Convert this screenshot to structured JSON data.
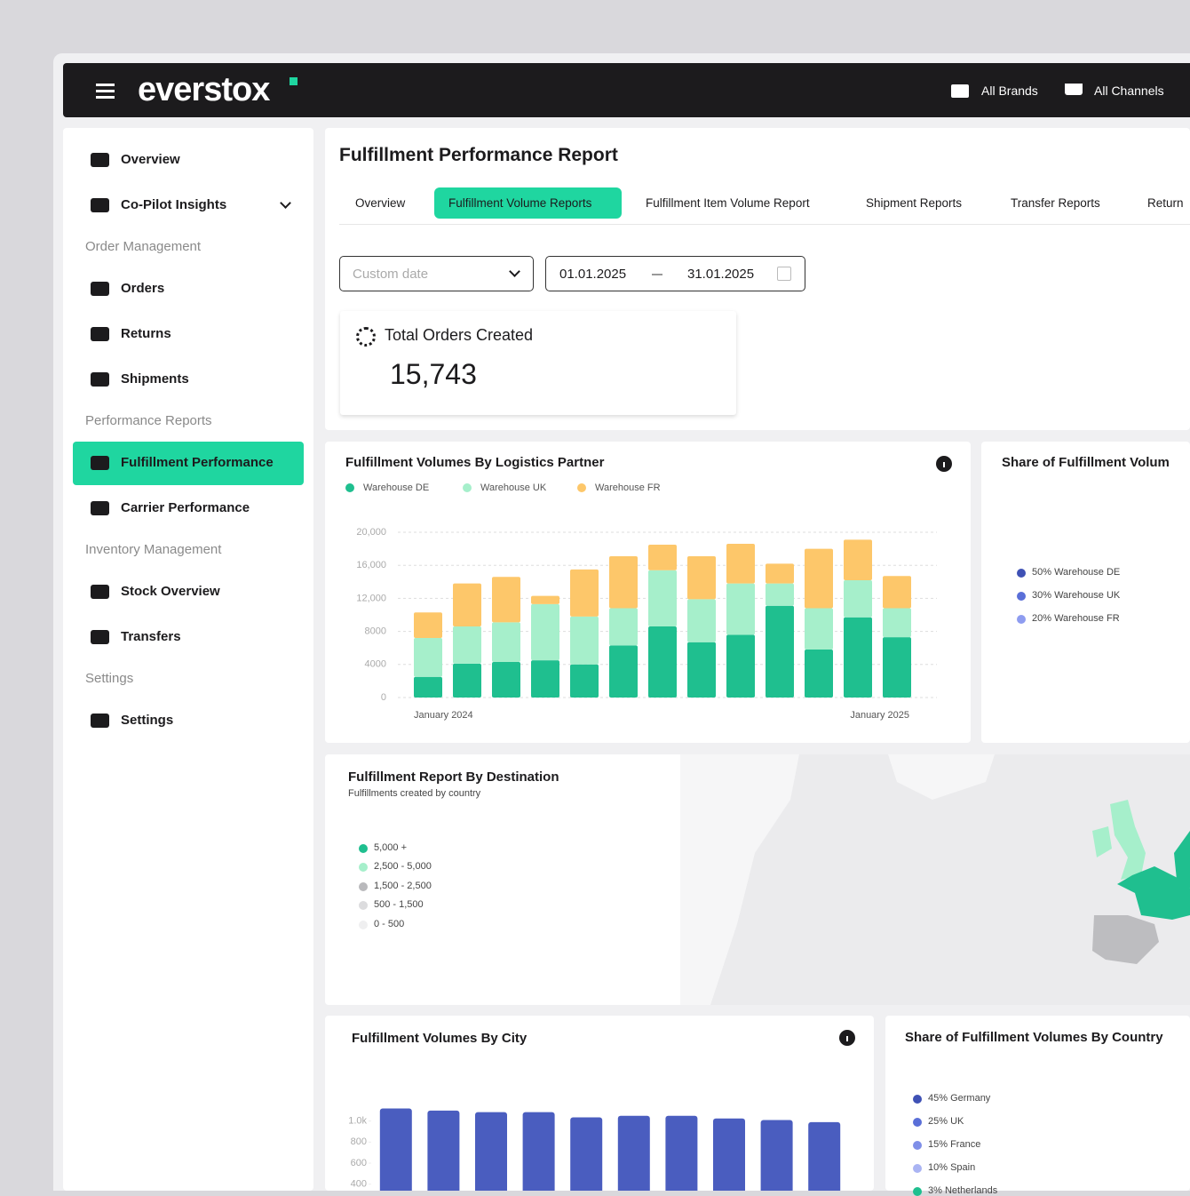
{
  "header": {
    "logo": "everstox",
    "brands": "All Brands",
    "channels": "All Channels"
  },
  "sidebar": [
    {
      "label": "Overview"
    },
    {
      "label": "Co-Pilot Insights",
      "expandable": true
    },
    {
      "section": "Order Management"
    },
    {
      "label": "Orders"
    },
    {
      "label": "Returns"
    },
    {
      "label": "Shipments"
    },
    {
      "section": "Performance Reports"
    },
    {
      "label": "Fulfillment Performance",
      "active": true
    },
    {
      "label": "Carrier Performance"
    },
    {
      "section": "Inventory Management"
    },
    {
      "label": "Stock Overview"
    },
    {
      "label": "Transfers"
    },
    {
      "section": "Settings"
    },
    {
      "label": "Settings"
    }
  ],
  "report": {
    "title": "Fulfillment Performance Report",
    "tabs": [
      "Overview",
      "Fulfillment Volume Reports",
      "Fulfillment Item Volume Report",
      "Shipment Reports",
      "Transfer Reports",
      "Return"
    ],
    "active_tab": 1,
    "date_range": {
      "placeholder": "Custom date",
      "from": "01.01.2025",
      "to": "31.01.2025"
    },
    "kpi": {
      "label": "Total Orders Created",
      "value": "15,743"
    }
  },
  "chart_data": [
    {
      "type": "bar",
      "stacked": true,
      "title": "Fulfillment Volumes By Logistics Partner",
      "legend": "top-left",
      "grid": true,
      "categories": [
        "January 2024",
        null,
        null,
        null,
        null,
        null,
        null,
        null,
        null,
        null,
        null,
        null,
        "January 2025"
      ],
      "series": [
        {
          "name": "Warehouse DE",
          "color": "#1fbf8f",
          "values": [
            2500,
            4100,
            4300,
            4500,
            4000,
            6300,
            8600,
            6700,
            7600,
            11100,
            5800,
            9700,
            7300
          ]
        },
        {
          "name": "Warehouse UK",
          "color": "#a6efcb",
          "values": [
            4700,
            4500,
            4800,
            6800,
            5800,
            4500,
            6800,
            5200,
            6200,
            2700,
            5000,
            4500,
            3500
          ]
        },
        {
          "name": "Warehouse FR",
          "color": "#fdc76a",
          "values": [
            3100,
            5200,
            5500,
            1000,
            5700,
            6300,
            3100,
            5200,
            4800,
            2400,
            7200,
            4900,
            3900
          ]
        }
      ],
      "ylim": [
        0,
        20000
      ],
      "yticks": [
        0,
        4000,
        8000,
        {
          "value": 12000,
          "label": "12,000"
        },
        {
          "value": 16000,
          "label": "16,000"
        },
        {
          "value": 20000,
          "label": "20,000"
        }
      ]
    },
    {
      "type": "bar",
      "title": "Fulfillment Volumes By City",
      "grid": false,
      "color": "#4a5dbf",
      "categories": [
        null,
        null,
        null,
        null,
        null,
        null,
        null,
        null,
        null,
        null
      ],
      "values": [
        1120,
        1100,
        1085,
        1085,
        1035,
        1050,
        1050,
        1025,
        1010,
        990
      ],
      "ylim": [
        0,
        1200
      ],
      "yticks": [
        400,
        600,
        800,
        {
          "value": 1000,
          "label": "1.0k"
        }
      ]
    }
  ],
  "partner_share": {
    "title": "Share of Fulfillment Volum",
    "legend": [
      {
        "label": "50% Warehouse DE",
        "color": "#3f51b5"
      },
      {
        "label": "30% Warehouse UK",
        "color": "#5a6fd8"
      },
      {
        "label": "20% Warehouse FR",
        "color": "#8e9cf0"
      }
    ]
  },
  "destination": {
    "title": "Fulfillment Report By Destination",
    "subtitle": "Fulfillments created by country",
    "legend": [
      {
        "label": "5,000 +",
        "color": "#1fbf8f"
      },
      {
        "label": "2,500 - 5,000",
        "color": "#a6efcb"
      },
      {
        "label": "1,500 - 2,500",
        "color": "#b9b9bc"
      },
      {
        "label": "500 - 1,500",
        "color": "#dcdcde"
      },
      {
        "label": "0 - 500",
        "color": "#efeff0"
      }
    ]
  },
  "country_share": {
    "title": "Share of Fulfillment Volumes By Country",
    "legend": [
      {
        "label": "45% Germany",
        "color": "#3f51b5"
      },
      {
        "label": "25% UK",
        "color": "#5a6fd8"
      },
      {
        "label": "15% France",
        "color": "#7f8fe8"
      },
      {
        "label": "10% Spain",
        "color": "#aab4f3"
      },
      {
        "label": "3% Netherlands",
        "color": "#1fbf8f"
      }
    ]
  }
}
